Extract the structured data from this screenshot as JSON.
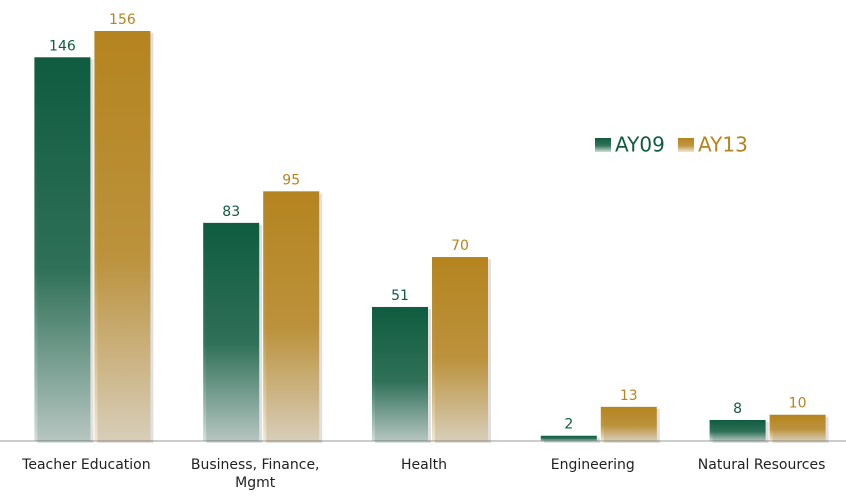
{
  "chart_data": {
    "type": "bar",
    "categories": [
      "Teacher Education",
      "Business, Finance, Mgmt",
      "Health",
      "Engineering",
      "Natural Resources"
    ],
    "series": [
      {
        "name": "AY09",
        "color": "#0f5c40",
        "values": [
          146,
          83,
          51,
          2,
          8
        ]
      },
      {
        "name": "AY13",
        "color": "#b5841f",
        "values": [
          156,
          95,
          70,
          13,
          10
        ]
      }
    ],
    "legend": "right"
  }
}
